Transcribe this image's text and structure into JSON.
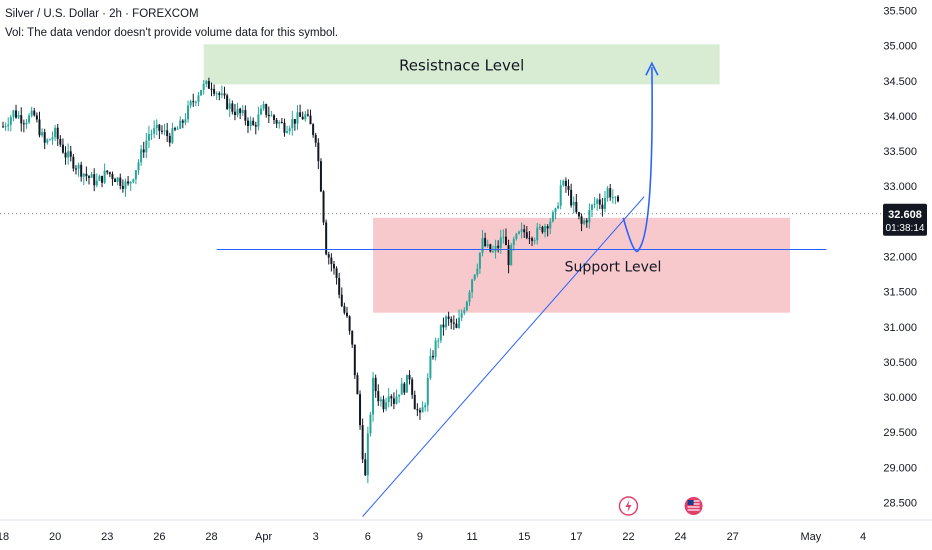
{
  "header": {
    "symbol_line": "Silver / U.S. Dollar · 2h · FOREXCOM",
    "volume_note": "Vol: The data vendor doesn't provide volume data for this symbol."
  },
  "chart_data": {
    "type": "candlestick",
    "y_ticks": [
      "35.500",
      "35.000",
      "34.500",
      "34.000",
      "33.500",
      "33.000",
      "32.000",
      "31.500",
      "31.000",
      "30.500",
      "30.000",
      "29.500",
      "29.000",
      "28.500"
    ],
    "y_tick_values": [
      35.5,
      35.0,
      34.5,
      34.0,
      33.5,
      33.0,
      32.0,
      31.5,
      31.0,
      30.5,
      30.0,
      29.5,
      29.0,
      28.5
    ],
    "ylim": [
      28.25,
      35.65
    ],
    "x_ticks": [
      "18",
      "20",
      "23",
      "26",
      "28",
      "Apr",
      "3",
      "6",
      "9",
      "11",
      "15",
      "17",
      "22",
      "24",
      "27",
      "May",
      "4"
    ],
    "x_tick_index": [
      0,
      20,
      40,
      60,
      80,
      100,
      120,
      140,
      160,
      180,
      200,
      220,
      240,
      260,
      280,
      310,
      330
    ],
    "x_range": [
      0,
      330
    ],
    "last_price": "32.608",
    "countdown": "01:38:14",
    "last_price_value": 32.608,
    "price_path": [
      [
        0,
        33.85
      ],
      [
        4,
        34.05
      ],
      [
        8,
        33.95
      ],
      [
        12,
        34.0
      ],
      [
        16,
        33.6
      ],
      [
        20,
        33.75
      ],
      [
        24,
        33.45
      ],
      [
        28,
        33.3
      ],
      [
        32,
        33.15
      ],
      [
        36,
        33.05
      ],
      [
        40,
        33.2
      ],
      [
        44,
        33.1
      ],
      [
        48,
        33.0
      ],
      [
        52,
        33.35
      ],
      [
        56,
        33.75
      ],
      [
        60,
        33.8
      ],
      [
        64,
        33.7
      ],
      [
        68,
        33.85
      ],
      [
        72,
        34.15
      ],
      [
        76,
        34.4
      ],
      [
        80,
        34.45
      ],
      [
        84,
        34.25
      ],
      [
        88,
        34.1
      ],
      [
        92,
        34.0
      ],
      [
        96,
        33.85
      ],
      [
        100,
        34.1
      ],
      [
        104,
        33.95
      ],
      [
        108,
        33.85
      ],
      [
        112,
        33.95
      ],
      [
        116,
        34.0
      ],
      [
        120,
        33.7
      ],
      [
        122,
        33.0
      ],
      [
        124,
        32.1
      ],
      [
        126,
        31.9
      ],
      [
        128,
        31.7
      ],
      [
        130,
        31.3
      ],
      [
        132,
        31.1
      ],
      [
        134,
        30.7
      ],
      [
        136,
        30.0
      ],
      [
        138,
        29.2
      ],
      [
        139,
        28.85
      ],
      [
        140,
        29.4
      ],
      [
        142,
        30.2
      ],
      [
        144,
        30.0
      ],
      [
        146,
        29.9
      ],
      [
        148,
        30.1
      ],
      [
        150,
        29.95
      ],
      [
        152,
        30.1
      ],
      [
        154,
        30.15
      ],
      [
        156,
        30.3
      ],
      [
        158,
        29.9
      ],
      [
        160,
        29.7
      ],
      [
        162,
        29.95
      ],
      [
        164,
        30.5
      ],
      [
        166,
        30.75
      ],
      [
        168,
        30.95
      ],
      [
        170,
        31.1
      ],
      [
        172,
        31.05
      ],
      [
        174,
        30.95
      ],
      [
        176,
        31.2
      ],
      [
        178,
        31.4
      ],
      [
        180,
        31.7
      ],
      [
        182,
        31.9
      ],
      [
        184,
        32.2
      ],
      [
        186,
        32.1
      ],
      [
        188,
        32.05
      ],
      [
        190,
        32.15
      ],
      [
        192,
        32.3
      ],
      [
        194,
        31.95
      ],
      [
        196,
        32.2
      ],
      [
        198,
        32.3
      ],
      [
        200,
        32.35
      ],
      [
        204,
        32.3
      ],
      [
        208,
        32.45
      ],
      [
        212,
        32.6
      ],
      [
        214,
        33.0
      ],
      [
        216,
        33.0
      ],
      [
        218,
        32.8
      ],
      [
        220,
        32.6
      ],
      [
        222,
        32.45
      ],
      [
        224,
        32.55
      ],
      [
        226,
        32.7
      ],
      [
        228,
        32.8
      ],
      [
        230,
        32.75
      ],
      [
        232,
        32.95
      ],
      [
        234,
        32.85
      ],
      [
        236,
        32.7
      ]
    ],
    "annotations": {
      "resistance_label": "Resistnace Level",
      "support_label": "Support Level",
      "resistance_zone": {
        "x_from": 77,
        "x_to": 275,
        "y_from": 34.45,
        "y_to": 35.02
      },
      "support_zone": {
        "x_from": 142,
        "x_to": 302,
        "y_from": 31.2,
        "y_to": 32.55
      },
      "support_line": {
        "x_from": 82,
        "x_to": 316,
        "y": 32.1
      },
      "trend_line": {
        "x1": 138,
        "y1": 28.3,
        "x2": 246,
        "y2": 32.85
      },
      "projection_arrow": {
        "start": [
          238,
          32.55
        ],
        "low": [
          244,
          32.1
        ],
        "end": [
          249,
          34.75
        ]
      }
    },
    "colors": {
      "up": "#26a69a",
      "down": "#131722",
      "resistance_zone": "#d8ecd4",
      "support_zone": "#f8c9cc",
      "lines": "#2962ff",
      "badge_bg": "#131722",
      "event_red": "#e0406a",
      "event_flag": "#ffffff"
    },
    "event_icons": [
      "lightning-icon",
      "us-flag-icon"
    ],
    "event_positions": [
      240,
      265
    ]
  }
}
